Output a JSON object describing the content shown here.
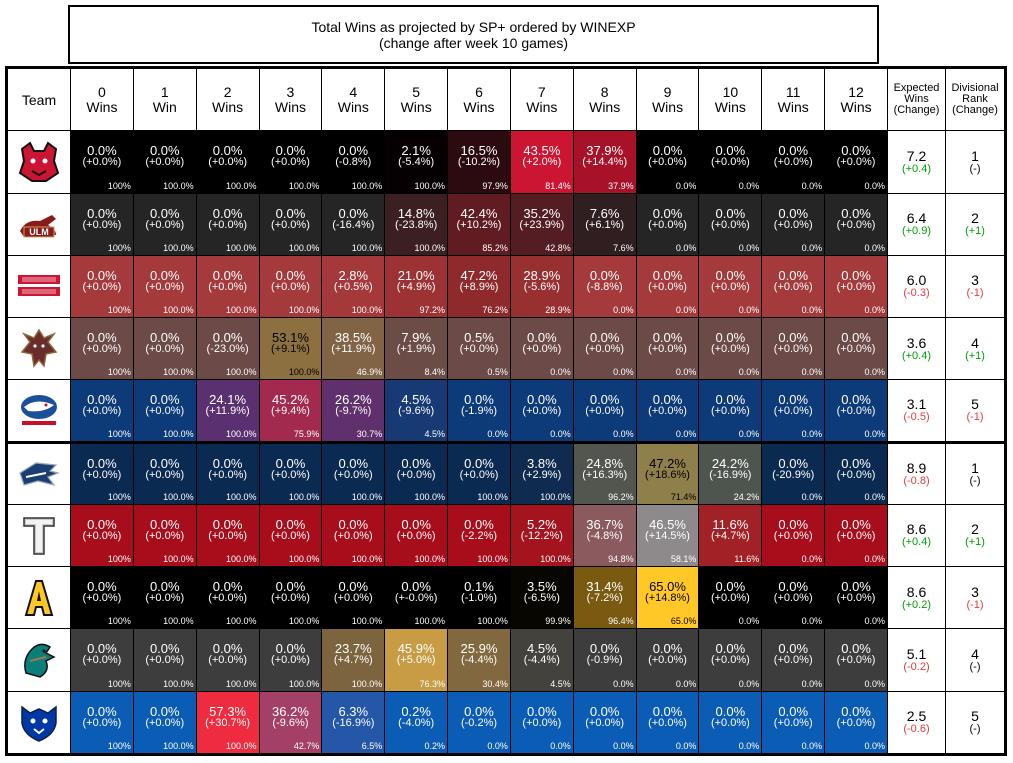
{
  "title": {
    "line1": "Total Wins as projected by SP+ ordered by WINEXP",
    "line2": "(change after week 10 games)"
  },
  "headers": {
    "team": "Team",
    "wins": [
      [
        "0",
        "Wins"
      ],
      [
        "1",
        "Win"
      ],
      [
        "2",
        "Wins"
      ],
      [
        "3",
        "Wins"
      ],
      [
        "4",
        "Wins"
      ],
      [
        "5",
        "Wins"
      ],
      [
        "6",
        "Wins"
      ],
      [
        "7",
        "Wins"
      ],
      [
        "8",
        "Wins"
      ],
      [
        "9",
        "Wins"
      ],
      [
        "10",
        "Wins"
      ],
      [
        "11",
        "Wins"
      ],
      [
        "12",
        "Wins"
      ]
    ],
    "expected": [
      "Expected",
      "Wins",
      "(Change)"
    ],
    "rank": [
      "Divisional",
      "Rank",
      "(Change)"
    ]
  },
  "teams": [
    {
      "logo": "arkansas-state-logo",
      "expected": "7.2",
      "expected_change": "(+0.4)",
      "rank": "1",
      "rank_change": "(-)",
      "cells": [
        {
          "p": "0.0%",
          "c": "(+0.0%)",
          "k": "100%",
          "bg": "#000000"
        },
        {
          "p": "0.0%",
          "c": "(+0.0%)",
          "k": "100.0%",
          "bg": "#000000"
        },
        {
          "p": "0.0%",
          "c": "(+0.0%)",
          "k": "100.0%",
          "bg": "#000000"
        },
        {
          "p": "0.0%",
          "c": "(+0.0%)",
          "k": "100.0%",
          "bg": "#000000"
        },
        {
          "p": "0.0%",
          "c": "(-0.8%)",
          "k": "100.0%",
          "bg": "#000000"
        },
        {
          "p": "2.1%",
          "c": "(-5.4%)",
          "k": "100.0%",
          "bg": "#060002"
        },
        {
          "p": "16.5%",
          "c": "(-10.2%)",
          "k": "97.9%",
          "bg": "#2b0a10"
        },
        {
          "p": "43.5%",
          "c": "(+2.0%)",
          "k": "81.4%",
          "bg": "#cc1533"
        },
        {
          "p": "37.9%",
          "c": "(+14.4%)",
          "k": "37.9%",
          "bg": "#a81229"
        },
        {
          "p": "0.0%",
          "c": "(+0.0%)",
          "k": "0.0%",
          "bg": "#000000"
        },
        {
          "p": "0.0%",
          "c": "(+0.0%)",
          "k": "0.0%",
          "bg": "#000000"
        },
        {
          "p": "0.0%",
          "c": "(+0.0%)",
          "k": "0.0%",
          "bg": "#000000"
        },
        {
          "p": "0.0%",
          "c": "(+0.0%)",
          "k": "0.0%",
          "bg": "#000000"
        }
      ]
    },
    {
      "logo": "ulm-logo",
      "expected": "6.4",
      "expected_change": "(+0.9)",
      "rank": "2",
      "rank_change": "(+1)",
      "cells": [
        {
          "p": "0.0%",
          "c": "(+0.0%)",
          "k": "100%",
          "bg": "#252525"
        },
        {
          "p": "0.0%",
          "c": "(+0.0%)",
          "k": "100.0%",
          "bg": "#252525"
        },
        {
          "p": "0.0%",
          "c": "(+0.0%)",
          "k": "100.0%",
          "bg": "#252525"
        },
        {
          "p": "0.0%",
          "c": "(+0.0%)",
          "k": "100.0%",
          "bg": "#252525"
        },
        {
          "p": "0.0%",
          "c": "(-16.4%)",
          "k": "100.0%",
          "bg": "#252525"
        },
        {
          "p": "14.8%",
          "c": "(-23.8%)",
          "k": "100.0%",
          "bg": "#3b1f21"
        },
        {
          "p": "42.4%",
          "c": "(+10.2%)",
          "k": "85.2%",
          "bg": "#611b22"
        },
        {
          "p": "35.2%",
          "c": "(+23.9%)",
          "k": "42.8%",
          "bg": "#541c23"
        },
        {
          "p": "7.6%",
          "c": "(+6.1%)",
          "k": "7.6%",
          "bg": "#2f1f21"
        },
        {
          "p": "0.0%",
          "c": "(+0.0%)",
          "k": "0.0%",
          "bg": "#252525"
        },
        {
          "p": "0.0%",
          "c": "(+0.0%)",
          "k": "0.0%",
          "bg": "#252525"
        },
        {
          "p": "0.0%",
          "c": "(+0.0%)",
          "k": "0.0%",
          "bg": "#252525"
        },
        {
          "p": "0.0%",
          "c": "(+0.0%)",
          "k": "0.0%",
          "bg": "#252525"
        }
      ]
    },
    {
      "logo": "ragin-cajuns-logo",
      "expected": "6.0",
      "expected_change": "(-0.3)",
      "rank": "3",
      "rank_change": "(-1)",
      "cells": [
        {
          "p": "0.0%",
          "c": "(+0.0%)",
          "k": "100%",
          "bg": "#a53a3c"
        },
        {
          "p": "0.0%",
          "c": "(+0.0%)",
          "k": "100.0%",
          "bg": "#a53a3c"
        },
        {
          "p": "0.0%",
          "c": "(+0.0%)",
          "k": "100.0%",
          "bg": "#a53a3c"
        },
        {
          "p": "0.0%",
          "c": "(+0.0%)",
          "k": "100.0%",
          "bg": "#a53a3c"
        },
        {
          "p": "2.8%",
          "c": "(+0.5%)",
          "k": "100.0%",
          "bg": "#a4383a"
        },
        {
          "p": "21.0%",
          "c": "(+4.9%)",
          "k": "97.2%",
          "bg": "#9c3234"
        },
        {
          "p": "47.2%",
          "c": "(+8.9%)",
          "k": "76.2%",
          "bg": "#8f2a2c"
        },
        {
          "p": "28.9%",
          "c": "(-5.6%)",
          "k": "28.9%",
          "bg": "#983032"
        },
        {
          "p": "0.0%",
          "c": "(-8.8%)",
          "k": "0.0%",
          "bg": "#a53a3c"
        },
        {
          "p": "0.0%",
          "c": "(+0.0%)",
          "k": "0.0%",
          "bg": "#a53a3c"
        },
        {
          "p": "0.0%",
          "c": "(+0.0%)",
          "k": "0.0%",
          "bg": "#a53a3c"
        },
        {
          "p": "0.0%",
          "c": "(+0.0%)",
          "k": "0.0%",
          "bg": "#a53a3c"
        },
        {
          "p": "0.0%",
          "c": "(+0.0%)",
          "k": "0.0%",
          "bg": "#a53a3c"
        }
      ]
    },
    {
      "logo": "texas-state-logo",
      "expected": "3.6",
      "expected_change": "(+0.4)",
      "rank": "4",
      "rank_change": "(+1)",
      "cells": [
        {
          "p": "0.0%",
          "c": "(+0.0%)",
          "k": "100%",
          "bg": "#6b4a47"
        },
        {
          "p": "0.0%",
          "c": "(+0.0%)",
          "k": "100.0%",
          "bg": "#6b4a47"
        },
        {
          "p": "0.0%",
          "c": "(-23.0%)",
          "k": "100.0%",
          "bg": "#6b4a47"
        },
        {
          "p": "53.1%",
          "c": "(+9.1%)",
          "k": "100.0%",
          "bg": "#8d7040",
          "dark": true
        },
        {
          "p": "38.5%",
          "c": "(+11.9%)",
          "k": "46.9%",
          "bg": "#806445"
        },
        {
          "p": "7.9%",
          "c": "(+1.9%)",
          "k": "8.4%",
          "bg": "#6c4c47"
        },
        {
          "p": "0.5%",
          "c": "(+0.0%)",
          "k": "0.5%",
          "bg": "#6b4a47"
        },
        {
          "p": "0.0%",
          "c": "(+0.0%)",
          "k": "0.0%",
          "bg": "#6b4a47"
        },
        {
          "p": "0.0%",
          "c": "(+0.0%)",
          "k": "0.0%",
          "bg": "#6b4a47"
        },
        {
          "p": "0.0%",
          "c": "(+0.0%)",
          "k": "0.0%",
          "bg": "#6b4a47"
        },
        {
          "p": "0.0%",
          "c": "(+0.0%)",
          "k": "0.0%",
          "bg": "#6b4a47"
        },
        {
          "p": "0.0%",
          "c": "(+0.0%)",
          "k": "0.0%",
          "bg": "#6b4a47"
        },
        {
          "p": "0.0%",
          "c": "(+0.0%)",
          "k": "0.0%",
          "bg": "#6b4a47"
        }
      ]
    },
    {
      "logo": "south-alabama-logo",
      "expected": "3.1",
      "expected_change": "(-0.5)",
      "rank": "5",
      "rank_change": "(-1)",
      "cells": [
        {
          "p": "0.0%",
          "c": "(+0.0%)",
          "k": "100%",
          "bg": "#0d3a78"
        },
        {
          "p": "0.0%",
          "c": "(+0.0%)",
          "k": "100.0%",
          "bg": "#0d3a78"
        },
        {
          "p": "24.1%",
          "c": "(+11.9%)",
          "k": "100.0%",
          "bg": "#5b3070"
        },
        {
          "p": "45.2%",
          "c": "(+9.4%)",
          "k": "75.9%",
          "bg": "#a32a4e"
        },
        {
          "p": "26.2%",
          "c": "(-9.7%)",
          "k": "30.7%",
          "bg": "#60306c"
        },
        {
          "p": "4.5%",
          "c": "(-9.6%)",
          "k": "4.5%",
          "bg": "#173a74"
        },
        {
          "p": "0.0%",
          "c": "(-1.9%)",
          "k": "0.0%",
          "bg": "#0d3a78"
        },
        {
          "p": "0.0%",
          "c": "(+0.0%)",
          "k": "0.0%",
          "bg": "#0d3a78"
        },
        {
          "p": "0.0%",
          "c": "(+0.0%)",
          "k": "0.0%",
          "bg": "#0d3a78"
        },
        {
          "p": "0.0%",
          "c": "(+0.0%)",
          "k": "0.0%",
          "bg": "#0d3a78"
        },
        {
          "p": "0.0%",
          "c": "(+0.0%)",
          "k": "0.0%",
          "bg": "#0d3a78"
        },
        {
          "p": "0.0%",
          "c": "(+0.0%)",
          "k": "0.0%",
          "bg": "#0d3a78"
        },
        {
          "p": "0.0%",
          "c": "(+0.0%)",
          "k": "0.0%",
          "bg": "#0d3a78"
        }
      ]
    },
    {
      "logo": "georgia-southern-logo",
      "expected": "8.9",
      "expected_change": "(-0.8)",
      "rank": "1",
      "rank_change": "(-)",
      "cells": [
        {
          "p": "0.0%",
          "c": "(+0.0%)",
          "k": "100%",
          "bg": "#0b2a52"
        },
        {
          "p": "0.0%",
          "c": "(+0.0%)",
          "k": "100.0%",
          "bg": "#0b2a52"
        },
        {
          "p": "0.0%",
          "c": "(+0.0%)",
          "k": "100.0%",
          "bg": "#0b2a52"
        },
        {
          "p": "0.0%",
          "c": "(+0.0%)",
          "k": "100.0%",
          "bg": "#0b2a52"
        },
        {
          "p": "0.0%",
          "c": "(+0.0%)",
          "k": "100.0%",
          "bg": "#0b2a52"
        },
        {
          "p": "0.0%",
          "c": "(+0.0%)",
          "k": "100.0%",
          "bg": "#0b2a52"
        },
        {
          "p": "0.0%",
          "c": "(+0.0%)",
          "k": "100.0%",
          "bg": "#0b2a52"
        },
        {
          "p": "3.8%",
          "c": "(+2.9%)",
          "k": "100.0%",
          "bg": "#0f2c50"
        },
        {
          "p": "24.8%",
          "c": "(+16.3%)",
          "k": "96.2%",
          "bg": "#52564e"
        },
        {
          "p": "47.2%",
          "c": "(+18.6%)",
          "k": "71.4%",
          "bg": "#8f7f4a",
          "dark": true
        },
        {
          "p": "24.2%",
          "c": "(-16.9%)",
          "k": "24.2%",
          "bg": "#4e554f"
        },
        {
          "p": "0.0%",
          "c": "(-20.9%)",
          "k": "0.0%",
          "bg": "#0b2a52"
        },
        {
          "p": "0.0%",
          "c": "(+0.0%)",
          "k": "0.0%",
          "bg": "#0b2a52"
        }
      ]
    },
    {
      "logo": "troy-logo",
      "expected": "8.6",
      "expected_change": "(+0.4)",
      "rank": "2",
      "rank_change": "(+1)",
      "cells": [
        {
          "p": "0.0%",
          "c": "(+0.0%)",
          "k": "100%",
          "bg": "#a80d1c"
        },
        {
          "p": "0.0%",
          "c": "(+0.0%)",
          "k": "100.0%",
          "bg": "#a80d1c"
        },
        {
          "p": "0.0%",
          "c": "(+0.0%)",
          "k": "100.0%",
          "bg": "#a80d1c"
        },
        {
          "p": "0.0%",
          "c": "(+0.0%)",
          "k": "100.0%",
          "bg": "#a80d1c"
        },
        {
          "p": "0.0%",
          "c": "(+0.0%)",
          "k": "100.0%",
          "bg": "#a80d1c"
        },
        {
          "p": "0.0%",
          "c": "(+0.0%)",
          "k": "100.0%",
          "bg": "#a80d1c"
        },
        {
          "p": "0.0%",
          "c": "(-2.2%)",
          "k": "100.0%",
          "bg": "#a80d1c"
        },
        {
          "p": "5.2%",
          "c": "(-12.2%)",
          "k": "100.0%",
          "bg": "#a4141f"
        },
        {
          "p": "36.7%",
          "c": "(-4.8%)",
          "k": "94.8%",
          "bg": "#8a5a5f"
        },
        {
          "p": "46.5%",
          "c": "(+14.5%)",
          "k": "58.1%",
          "bg": "#8e8a8c"
        },
        {
          "p": "11.6%",
          "c": "(+4.7%)",
          "k": "11.6%",
          "bg": "#a12126"
        },
        {
          "p": "0.0%",
          "c": "(+0.0%)",
          "k": "0.0%",
          "bg": "#a80d1c"
        },
        {
          "p": "0.0%",
          "c": "(+0.0%)",
          "k": "0.0%",
          "bg": "#a80d1c"
        }
      ]
    },
    {
      "logo": "appalachian-state-logo",
      "expected": "8.6",
      "expected_change": "(+0.2)",
      "rank": "3",
      "rank_change": "(-1)",
      "cells": [
        {
          "p": "0.0%",
          "c": "(+0.0%)",
          "k": "100%",
          "bg": "#000000"
        },
        {
          "p": "0.0%",
          "c": "(+0.0%)",
          "k": "100.0%",
          "bg": "#000000"
        },
        {
          "p": "0.0%",
          "c": "(+0.0%)",
          "k": "100.0%",
          "bg": "#000000"
        },
        {
          "p": "0.0%",
          "c": "(+0.0%)",
          "k": "100.0%",
          "bg": "#000000"
        },
        {
          "p": "0.0%",
          "c": "(+0.0%)",
          "k": "100.0%",
          "bg": "#000000"
        },
        {
          "p": "0.0%",
          "c": "(+-0.0%)",
          "k": "100.0%",
          "bg": "#000000"
        },
        {
          "p": "0.1%",
          "c": "(-1.0%)",
          "k": "100.0%",
          "bg": "#000000"
        },
        {
          "p": "3.5%",
          "c": "(-6.5%)",
          "k": "99.9%",
          "bg": "#080600"
        },
        {
          "p": "31.4%",
          "c": "(-7.2%)",
          "k": "96.4%",
          "bg": "#7a5a10"
        },
        {
          "p": "65.0%",
          "c": "(+14.8%)",
          "k": "65.0%",
          "bg": "#ffc827",
          "dark": true
        },
        {
          "p": "0.0%",
          "c": "(+0.0%)",
          "k": "0.0%",
          "bg": "#000000"
        },
        {
          "p": "0.0%",
          "c": "(+0.0%)",
          "k": "0.0%",
          "bg": "#000000"
        },
        {
          "p": "0.0%",
          "c": "(+0.0%)",
          "k": "0.0%",
          "bg": "#000000"
        }
      ]
    },
    {
      "logo": "coastal-carolina-logo",
      "expected": "5.1",
      "expected_change": "(-0.2)",
      "rank": "4",
      "rank_change": "(-)",
      "cells": [
        {
          "p": "0.0%",
          "c": "(+0.0%)",
          "k": "100%",
          "bg": "#3d3d3d"
        },
        {
          "p": "0.0%",
          "c": "(+0.0%)",
          "k": "100.0%",
          "bg": "#3d3d3d"
        },
        {
          "p": "0.0%",
          "c": "(+0.0%)",
          "k": "100.0%",
          "bg": "#3d3d3d"
        },
        {
          "p": "0.0%",
          "c": "(+0.0%)",
          "k": "100.0%",
          "bg": "#3d3d3d"
        },
        {
          "p": "23.7%",
          "c": "(+4.7%)",
          "k": "100.0%",
          "bg": "#7c643e"
        },
        {
          "p": "45.9%",
          "c": "(+5.0%)",
          "k": "76.3%",
          "bg": "#c79c45"
        },
        {
          "p": "25.9%",
          "c": "(-4.4%)",
          "k": "30.4%",
          "bg": "#82683f"
        },
        {
          "p": "4.5%",
          "c": "(-4.4%)",
          "k": "4.5%",
          "bg": "#44423d"
        },
        {
          "p": "0.0%",
          "c": "(-0.9%)",
          "k": "0.0%",
          "bg": "#3d3d3d"
        },
        {
          "p": "0.0%",
          "c": "(+0.0%)",
          "k": "0.0%",
          "bg": "#3d3d3d"
        },
        {
          "p": "0.0%",
          "c": "(+0.0%)",
          "k": "0.0%",
          "bg": "#3d3d3d"
        },
        {
          "p": "0.0%",
          "c": "(+0.0%)",
          "k": "0.0%",
          "bg": "#3d3d3d"
        },
        {
          "p": "0.0%",
          "c": "(+0.0%)",
          "k": "0.0%",
          "bg": "#3d3d3d"
        }
      ]
    },
    {
      "logo": "georgia-state-logo",
      "expected": "2.5",
      "expected_change": "(-0.6)",
      "rank": "5",
      "rank_change": "(-)",
      "cells": [
        {
          "p": "0.0%",
          "c": "(+0.0%)",
          "k": "100%",
          "bg": "#0b5cb5"
        },
        {
          "p": "0.0%",
          "c": "(+0.0%)",
          "k": "100.0%",
          "bg": "#0b5cb5"
        },
        {
          "p": "57.3%",
          "c": "(+30.7%)",
          "k": "100.0%",
          "bg": "#ef2b3f"
        },
        {
          "p": "36.2%",
          "c": "(-9.6%)",
          "k": "42.7%",
          "bg": "#a44067"
        },
        {
          "p": "6.3%",
          "c": "(-16.9%)",
          "k": "6.5%",
          "bg": "#2457a8"
        },
        {
          "p": "0.2%",
          "c": "(-4.0%)",
          "k": "0.2%",
          "bg": "#0b5cb5"
        },
        {
          "p": "0.0%",
          "c": "(-0.2%)",
          "k": "0.0%",
          "bg": "#0b5cb5"
        },
        {
          "p": "0.0%",
          "c": "(+0.0%)",
          "k": "0.0%",
          "bg": "#0b5cb5"
        },
        {
          "p": "0.0%",
          "c": "(+0.0%)",
          "k": "0.0%",
          "bg": "#0b5cb5"
        },
        {
          "p": "0.0%",
          "c": "(+0.0%)",
          "k": "0.0%",
          "bg": "#0b5cb5"
        },
        {
          "p": "0.0%",
          "c": "(+0.0%)",
          "k": "0.0%",
          "bg": "#0b5cb5"
        },
        {
          "p": "0.0%",
          "c": "(+0.0%)",
          "k": "0.0%",
          "bg": "#0b5cb5"
        },
        {
          "p": "0.0%",
          "c": "(+0.0%)",
          "k": "0.0%",
          "bg": "#0b5cb5"
        }
      ]
    }
  ],
  "colors": {
    "positive": "#00a000",
    "negative": "#e03c3c",
    "neutral": "#000000"
  }
}
